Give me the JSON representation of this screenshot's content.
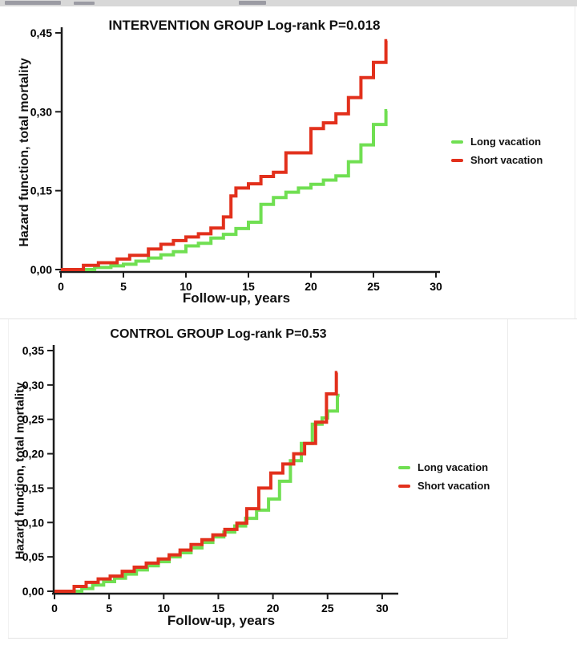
{
  "page": {
    "background": "#ffffff",
    "axis_color": "#1c1c1c"
  },
  "chart_data": [
    {
      "type": "line",
      "variant": "step-cumulative-hazard",
      "title": "INTERVENTION GROUP Log-rank P=0.018",
      "xlabel": "Follow-up, years",
      "ylabel": "Hazard function, total mortality",
      "xlim": [
        0,
        30
      ],
      "ylim": [
        0,
        0.45
      ],
      "grid": "off",
      "legend_position": "right",
      "x_ticks": [
        0,
        5,
        10,
        15,
        20,
        25,
        30
      ],
      "y_ticks": [
        {
          "v": 0.0,
          "label": "0,00"
        },
        {
          "v": 0.15,
          "label": "0,15"
        },
        {
          "v": 0.3,
          "label": "0,30"
        },
        {
          "v": 0.45,
          "label": "0,45"
        }
      ],
      "legend": [
        {
          "name": "Long vacation",
          "color": "#70df52"
        },
        {
          "name": "Short vacation",
          "color": "#e2301c"
        }
      ],
      "series": [
        {
          "name": "Long vacation",
          "color": "#70df52",
          "end_x": 26.1,
          "points": [
            [
              0,
              0
            ],
            [
              2.7,
              0.004
            ],
            [
              4,
              0.007
            ],
            [
              5,
              0.01
            ],
            [
              6,
              0.016
            ],
            [
              7,
              0.022
            ],
            [
              8,
              0.028
            ],
            [
              9,
              0.034
            ],
            [
              10,
              0.045
            ],
            [
              11,
              0.05
            ],
            [
              12,
              0.06
            ],
            [
              13,
              0.067
            ],
            [
              14,
              0.078
            ],
            [
              15,
              0.09
            ],
            [
              16,
              0.124
            ],
            [
              17,
              0.137
            ],
            [
              18,
              0.147
            ],
            [
              19,
              0.155
            ],
            [
              20,
              0.162
            ],
            [
              21,
              0.17
            ],
            [
              22,
              0.178
            ],
            [
              23,
              0.205
            ],
            [
              24,
              0.237
            ],
            [
              25,
              0.276
            ],
            [
              26,
              0.302
            ]
          ]
        },
        {
          "name": "Short vacation",
          "color": "#e2301c",
          "end_x": 26.1,
          "points": [
            [
              0,
              0
            ],
            [
              1.8,
              0.008
            ],
            [
              3,
              0.013
            ],
            [
              4.5,
              0.02
            ],
            [
              5.5,
              0.027
            ],
            [
              7,
              0.039
            ],
            [
              8,
              0.048
            ],
            [
              9,
              0.055
            ],
            [
              10,
              0.062
            ],
            [
              11,
              0.068
            ],
            [
              12,
              0.079
            ],
            [
              13,
              0.1
            ],
            [
              13.6,
              0.14
            ],
            [
              14,
              0.155
            ],
            [
              15,
              0.163
            ],
            [
              16,
              0.177
            ],
            [
              17,
              0.185
            ],
            [
              18,
              0.222
            ],
            [
              20,
              0.268
            ],
            [
              21,
              0.279
            ],
            [
              22,
              0.296
            ],
            [
              23,
              0.327
            ],
            [
              24,
              0.365
            ],
            [
              25,
              0.394
            ],
            [
              26,
              0.435
            ]
          ]
        }
      ]
    },
    {
      "type": "line",
      "variant": "step-cumulative-hazard",
      "title": "CONTROL GROUP Log-rank P=0.53",
      "xlabel": "Follow-up, years",
      "ylabel": "Hazard function, total mortality",
      "xlim": [
        0,
        30
      ],
      "ylim": [
        0,
        0.35
      ],
      "grid": "off",
      "legend_position": "right",
      "x_ticks": [
        0,
        5,
        10,
        15,
        20,
        25,
        30
      ],
      "y_ticks": [
        {
          "v": 0.0,
          "label": "0,00"
        },
        {
          "v": 0.05,
          "label": "0,05"
        },
        {
          "v": 0.1,
          "label": "0,10"
        },
        {
          "v": 0.15,
          "label": "0,15"
        },
        {
          "v": 0.2,
          "label": "0,20"
        },
        {
          "v": 0.25,
          "label": "0,25"
        },
        {
          "v": 0.3,
          "label": "0,30"
        },
        {
          "v": 0.35,
          "label": "0,35"
        }
      ],
      "legend": [
        {
          "name": "Long vacation",
          "color": "#70df52"
        },
        {
          "name": "Short vacation",
          "color": "#e2301c"
        }
      ],
      "series": [
        {
          "name": "Long vacation",
          "color": "#70df52",
          "end_x": 26.1,
          "points": [
            [
              0,
              0
            ],
            [
              2.5,
              0.004
            ],
            [
              3.5,
              0.009
            ],
            [
              4.5,
              0.014
            ],
            [
              5.5,
              0.019
            ],
            [
              6.5,
              0.025
            ],
            [
              7.5,
              0.031
            ],
            [
              8.5,
              0.037
            ],
            [
              9.5,
              0.043
            ],
            [
              10.5,
              0.05
            ],
            [
              11.5,
              0.056
            ],
            [
              12.5,
              0.063
            ],
            [
              13.5,
              0.071
            ],
            [
              14.5,
              0.079
            ],
            [
              15.5,
              0.086
            ],
            [
              16.5,
              0.095
            ],
            [
              17.5,
              0.106
            ],
            [
              18.5,
              0.118
            ],
            [
              19.6,
              0.134
            ],
            [
              20.6,
              0.16
            ],
            [
              21.6,
              0.19
            ],
            [
              22.6,
              0.215
            ],
            [
              23.6,
              0.243
            ],
            [
              24.5,
              0.252
            ],
            [
              25,
              0.262
            ],
            [
              25.9,
              0.285
            ]
          ]
        },
        {
          "name": "Short vacation",
          "color": "#e2301c",
          "end_x": 25.9,
          "points": [
            [
              0,
              0
            ],
            [
              1.8,
              0.007
            ],
            [
              2.9,
              0.013
            ],
            [
              4,
              0.018
            ],
            [
              5.1,
              0.022
            ],
            [
              6.2,
              0.029
            ],
            [
              7.3,
              0.035
            ],
            [
              8.4,
              0.041
            ],
            [
              9.5,
              0.047
            ],
            [
              10.5,
              0.053
            ],
            [
              11.5,
              0.06
            ],
            [
              12.5,
              0.068
            ],
            [
              13.5,
              0.075
            ],
            [
              14.5,
              0.082
            ],
            [
              15.6,
              0.09
            ],
            [
              16.7,
              0.099
            ],
            [
              17.6,
              0.12
            ],
            [
              18.7,
              0.15
            ],
            [
              19.8,
              0.172
            ],
            [
              20.9,
              0.185
            ],
            [
              21.9,
              0.2
            ],
            [
              22.9,
              0.215
            ],
            [
              23.9,
              0.246
            ],
            [
              24.9,
              0.287
            ],
            [
              25.8,
              0.318
            ]
          ]
        }
      ]
    }
  ]
}
